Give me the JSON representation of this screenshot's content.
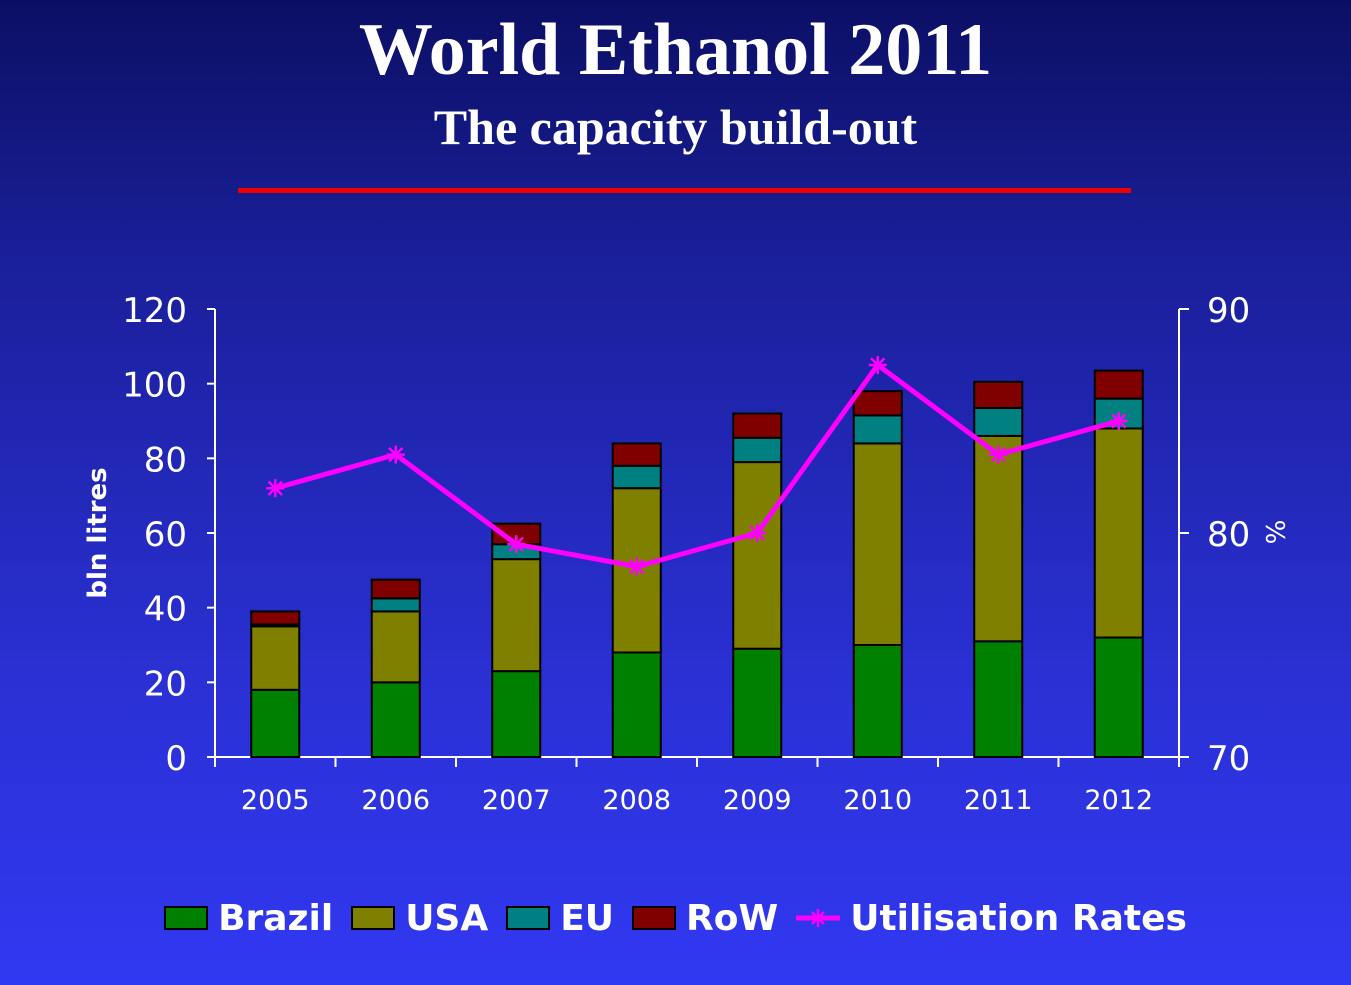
{
  "slide": {
    "title": "World Ethanol 2011",
    "subtitle": "The capacity build-out"
  },
  "chart_data": {
    "type": "bar",
    "stacked": true,
    "categories": [
      "2005",
      "2006",
      "2007",
      "2008",
      "2009",
      "2010",
      "2011",
      "2012"
    ],
    "series": [
      {
        "name": "Brazil",
        "color": "#008000",
        "values": [
          18,
          20,
          23,
          28,
          29,
          30,
          31,
          32
        ]
      },
      {
        "name": "USA",
        "color": "#808000",
        "values": [
          17,
          19,
          30,
          44,
          50,
          54,
          55,
          56
        ]
      },
      {
        "name": "EU",
        "color": "#008080",
        "values": [
          0.5,
          3.5,
          4,
          6,
          6.5,
          7.5,
          7.5,
          8
        ]
      },
      {
        "name": "RoW",
        "color": "#800000",
        "values": [
          3.5,
          5,
          5.5,
          6,
          6.5,
          6.5,
          7,
          7.5
        ]
      }
    ],
    "line_series": {
      "name": "Utilisation Rates",
      "color": "#ff00ff",
      "axis": "right",
      "values": [
        82,
        83.5,
        79.5,
        78.5,
        80,
        87.5,
        83.5,
        85
      ]
    },
    "ylabel": "bln litres",
    "ylabel_right": "%",
    "ylim": [
      0,
      120
    ],
    "yticks": [
      "0",
      "20",
      "40",
      "60",
      "80",
      "100",
      "120"
    ],
    "ylim_right": [
      70,
      90
    ],
    "yticks_right": [
      "70",
      "80",
      "90"
    ],
    "legend_position": "bottom",
    "grid": false
  }
}
